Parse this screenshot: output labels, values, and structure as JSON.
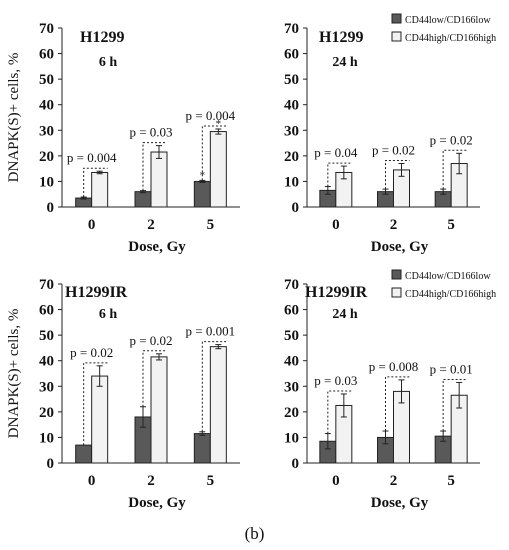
{
  "caption": "(b)",
  "chart_data": [
    {
      "type": "bar",
      "title": "H1299",
      "subtitle": "6 h",
      "ylabel": "DNAPK(S)+ cells, %",
      "xlabel": "Dose, Gy",
      "categories": [
        "0",
        "2",
        "5"
      ],
      "ylim": [
        0,
        70
      ],
      "yticks": [
        0,
        10,
        20,
        30,
        40,
        50,
        60,
        70
      ],
      "series": [
        {
          "name": "CD44low/CD166low",
          "values": [
            3.5,
            6,
            10
          ],
          "errors": [
            0.4,
            0.4,
            0.4
          ],
          "color": "#595959"
        },
        {
          "name": "CD44high/CD166high",
          "values": [
            13.5,
            21.5,
            29.5
          ],
          "errors": [
            0.5,
            2.5,
            1.0
          ],
          "color": "#f2f2f2"
        }
      ],
      "annotations": [
        "p = 0.004",
        "p = 0.03",
        "p = 0.004"
      ],
      "stars": [
        null,
        null,
        [
          "*",
          "*"
        ]
      ],
      "legend": false
    },
    {
      "type": "bar",
      "title": "H1299",
      "subtitle": "24 h",
      "ylabel": "",
      "xlabel": "Dose, Gy",
      "categories": [
        "0",
        "2",
        "5"
      ],
      "ylim": [
        0,
        70
      ],
      "yticks": [
        0,
        10,
        20,
        30,
        40,
        50,
        60,
        70
      ],
      "series": [
        {
          "name": "CD44low/CD166low",
          "values": [
            6.5,
            6,
            6
          ],
          "errors": [
            1.5,
            1.0,
            1.0
          ],
          "color": "#595959"
        },
        {
          "name": "CD44high/CD166high",
          "values": [
            13.5,
            14.5,
            17
          ],
          "errors": [
            2.5,
            2.5,
            4.0
          ],
          "color": "#f2f2f2"
        }
      ],
      "annotations": [
        "p = 0.04",
        "p = 0.02",
        "p = 0.02"
      ],
      "stars": [
        null,
        null,
        null
      ],
      "legend": true
    },
    {
      "type": "bar",
      "title": "H1299IR",
      "subtitle": "6 h",
      "ylabel": "DNAPK(S)+ cells, %",
      "xlabel": "Dose, Gy",
      "categories": [
        "0",
        "2",
        "5"
      ],
      "ylim": [
        0,
        70
      ],
      "yticks": [
        0,
        10,
        20,
        30,
        40,
        50,
        60,
        70
      ],
      "series": [
        {
          "name": "CD44low/CD166low",
          "values": [
            7,
            18,
            11.5
          ],
          "errors": [
            0,
            4.0,
            0.7
          ],
          "color": "#595959"
        },
        {
          "name": "CD44high/CD166high",
          "values": [
            34,
            41.5,
            45.5
          ],
          "errors": [
            4.0,
            1.2,
            0.8
          ],
          "color": "#f2f2f2"
        }
      ],
      "annotations": [
        "p = 0.02",
        "p = 0.02",
        "p = 0.001"
      ],
      "stars": [
        null,
        null,
        null
      ],
      "legend": false
    },
    {
      "type": "bar",
      "title": "H1299IR",
      "subtitle": "24 h",
      "ylabel": "",
      "xlabel": "Dose, Gy",
      "categories": [
        "0",
        "2",
        "5"
      ],
      "ylim": [
        0,
        70
      ],
      "yticks": [
        0,
        10,
        20,
        30,
        40,
        50,
        60,
        70
      ],
      "series": [
        {
          "name": "CD44low/CD166low",
          "values": [
            8.5,
            10,
            10.5
          ],
          "errors": [
            3.0,
            2.5,
            2.0
          ],
          "color": "#595959"
        },
        {
          "name": "CD44high/CD166high",
          "values": [
            22.5,
            28,
            26.5
          ],
          "errors": [
            4.5,
            4.5,
            5.0
          ],
          "color": "#f2f2f2"
        }
      ],
      "annotations": [
        "p = 0.03",
        "p = 0.008",
        "p = 0.01"
      ],
      "stars": [
        null,
        null,
        null
      ],
      "legend": true
    }
  ]
}
